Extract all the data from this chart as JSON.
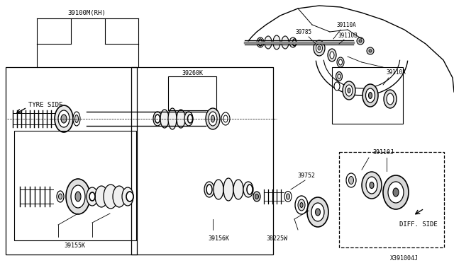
{
  "bg_color": "#ffffff",
  "line_color": "#000000",
  "figsize": [
    6.4,
    3.72
  ],
  "dpi": 100,
  "labels": {
    "39100M_RH": "39100M(RH)",
    "39260K": "39260K",
    "39155K": "39155K",
    "39156K": "39156K",
    "38225W": "38225W",
    "39752": "39752",
    "39110J": "39110J",
    "39785": "39785",
    "39110A_top": "39110A",
    "39110B": "39110B",
    "39110A_bot": "39110A",
    "X391004J": "X391004J",
    "TYRE_SIDE": "TYRE SIDE",
    "DIFF_SIDE": "DIFF. SIDE"
  }
}
